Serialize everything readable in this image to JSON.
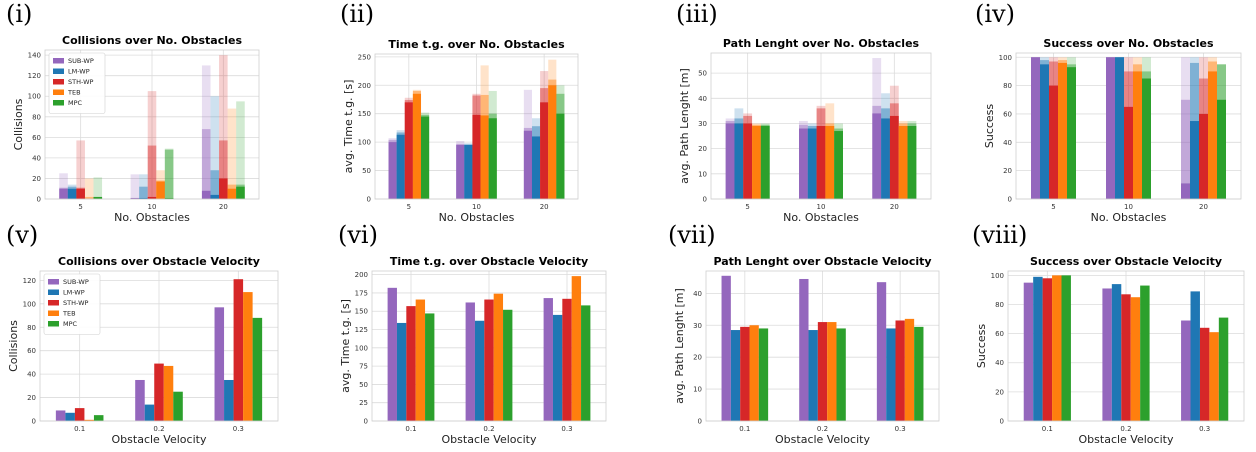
{
  "colors": {
    "SUB-WP": "#9467bd",
    "LM-WP": "#1f77b4",
    "STH-WP": "#d62728",
    "TEB": "#ff7f0e",
    "MPC": "#2ca02c",
    "grid": "#dcdcdc",
    "frame": "#cfcfcf"
  },
  "chart_data": [
    {
      "panel_label": "(i)",
      "type": "bar",
      "title": "Collisions over No. Obstacles",
      "xlabel": "No. Obstacles",
      "ylabel": "Collisions",
      "categories": [
        "5",
        "10",
        "20"
      ],
      "ylim": [
        0,
        145
      ],
      "yticks": [
        0,
        20,
        40,
        60,
        80,
        100,
        120,
        140
      ],
      "legend": "top-left",
      "grid": true,
      "series": [
        {
          "name": "SUB-WP",
          "values": [
            10,
            1,
            8
          ],
          "faded_values": [
            [
              11,
              25
            ],
            [
              1,
              24
            ],
            [
              68,
              130
            ]
          ]
        },
        {
          "name": "LM-WP",
          "values": [
            10,
            1,
            4
          ],
          "faded_values": [
            [
              12,
              14
            ],
            [
              12,
              24
            ],
            [
              28,
              100
            ]
          ]
        },
        {
          "name": "STH-WP",
          "values": [
            10,
            2,
            20
          ],
          "faded_values": [
            [
              11,
              57
            ],
            [
              52,
              105
            ],
            [
              57,
              140
            ]
          ]
        },
        {
          "name": "TEB",
          "values": [
            0,
            17,
            10
          ],
          "faded_values": [
            [
              2,
              20
            ],
            [
              18,
              28
            ],
            [
              14,
              88
            ]
          ]
        },
        {
          "name": "MPC",
          "values": [
            2,
            1,
            12
          ],
          "faded_values": [
            [
              2,
              21
            ],
            [
              48,
              49
            ],
            [
              14,
              95
            ]
          ]
        }
      ]
    },
    {
      "panel_label": "(ii)",
      "type": "bar",
      "title": "Time t.g. over No. Obstacles",
      "xlabel": "No. Obstacles",
      "ylabel": "avg. Time t.g. [s]",
      "categories": [
        "5",
        "10",
        "20"
      ],
      "ylim": [
        0,
        255
      ],
      "yticks": [
        0,
        50,
        100,
        150,
        200,
        250
      ],
      "legend": "none",
      "grid": true,
      "series": [
        {
          "name": "SUB-WP",
          "values": [
            100,
            95,
            120
          ],
          "faded_values": [
            [
              104,
              107
            ],
            [
              97,
              102
            ],
            [
              125,
              192
            ]
          ]
        },
        {
          "name": "LM-WP",
          "values": [
            113,
            95,
            110
          ],
          "faded_values": [
            [
              117,
              121
            ],
            [
              96,
              98
            ],
            [
              128,
              142
            ]
          ]
        },
        {
          "name": "STH-WP",
          "values": [
            170,
            148,
            170
          ],
          "faded_values": [
            [
              174,
              178
            ],
            [
              182,
              185
            ],
            [
              195,
              225
            ]
          ]
        },
        {
          "name": "TEB",
          "values": [
            185,
            147,
            200
          ],
          "faded_values": [
            [
              190,
              192
            ],
            [
              183,
              235
            ],
            [
              210,
              245
            ]
          ]
        },
        {
          "name": "MPC",
          "values": [
            145,
            142,
            150
          ],
          "faded_values": [
            [
              148,
              152
            ],
            [
              150,
              190
            ],
            [
              185,
              200
            ]
          ]
        }
      ]
    },
    {
      "panel_label": "(iii)",
      "type": "bar",
      "title": "Path Lenght over No. Obstacles",
      "xlabel": "No. Obstacles",
      "ylabel": "avg. Path Lenght [m]",
      "categories": [
        "5",
        "10",
        "20"
      ],
      "ylim": [
        0,
        58
      ],
      "yticks": [
        0,
        10,
        20,
        30,
        40,
        50
      ],
      "legend": "none",
      "grid": true,
      "series": [
        {
          "name": "SUB-WP",
          "values": [
            30,
            28,
            34
          ],
          "faded_values": [
            [
              31,
              32
            ],
            [
              29.5,
              31
            ],
            [
              37,
              56
            ]
          ]
        },
        {
          "name": "LM-WP",
          "values": [
            30,
            28,
            32
          ],
          "faded_values": [
            [
              32,
              36
            ],
            [
              29,
              30
            ],
            [
              36,
              42
            ]
          ]
        },
        {
          "name": "STH-WP",
          "values": [
            30,
            29,
            33
          ],
          "faded_values": [
            [
              33,
              34
            ],
            [
              36,
              37
            ],
            [
              38,
              45
            ]
          ]
        },
        {
          "name": "TEB",
          "values": [
            29,
            29,
            29
          ],
          "faded_values": [
            [
              29.5,
              30
            ],
            [
              30,
              38
            ],
            [
              30,
              31
            ]
          ]
        },
        {
          "name": "MPC",
          "values": [
            29,
            27,
            29
          ],
          "faded_values": [
            [
              29.5,
              30
            ],
            [
              28,
              30
            ],
            [
              30,
              31
            ]
          ]
        }
      ]
    },
    {
      "panel_label": "(iv)",
      "type": "bar",
      "title": "Success over No. Obstacles",
      "xlabel": "No. Obstacles",
      "ylabel": "Success",
      "categories": [
        "5",
        "10",
        "20"
      ],
      "ylim": [
        0,
        103
      ],
      "yticks": [
        0,
        20,
        40,
        60,
        80,
        100
      ],
      "legend": "none",
      "grid": true,
      "series": [
        {
          "name": "SUB-WP",
          "values": [
            100,
            100,
            11
          ],
          "faded_values": [
            [
              100,
              100
            ],
            [
              100,
              100
            ],
            [
              70,
              100
            ]
          ]
        },
        {
          "name": "LM-WP",
          "values": [
            95,
            100,
            55
          ],
          "faded_values": [
            [
              98,
              100
            ],
            [
              100,
              100
            ],
            [
              96,
              100
            ]
          ]
        },
        {
          "name": "STH-WP",
          "values": [
            80,
            65,
            60
          ],
          "faded_values": [
            [
              97,
              100
            ],
            [
              90,
              100
            ],
            [
              85,
              100
            ]
          ]
        },
        {
          "name": "TEB",
          "values": [
            96,
            90,
            90
          ],
          "faded_values": [
            [
              98,
              100
            ],
            [
              95,
              100
            ],
            [
              97,
              100
            ]
          ]
        },
        {
          "name": "MPC",
          "values": [
            93,
            85,
            70
          ],
          "faded_values": [
            [
              95,
              100
            ],
            [
              90,
              100
            ],
            [
              95,
              95
            ]
          ]
        }
      ]
    },
    {
      "panel_label": "(v)",
      "type": "bar",
      "title": "Collisions over Obstacle Velocity",
      "xlabel": "Obstacle Velocity",
      "ylabel": "Collisions",
      "categories": [
        "0.1",
        "0.2",
        "0.3"
      ],
      "ylim": [
        0,
        128
      ],
      "yticks": [
        0,
        20,
        40,
        60,
        80,
        100,
        120
      ],
      "legend": "top-left",
      "grid": true,
      "series": [
        {
          "name": "SUB-WP",
          "values": [
            9,
            35,
            97
          ]
        },
        {
          "name": "LM-WP",
          "values": [
            7,
            14,
            35
          ]
        },
        {
          "name": "STH-WP",
          "values": [
            11,
            49,
            121
          ]
        },
        {
          "name": "TEB",
          "values": [
            1,
            47,
            110
          ]
        },
        {
          "name": "MPC",
          "values": [
            5,
            25,
            88
          ]
        }
      ]
    },
    {
      "panel_label": "(vi)",
      "type": "bar",
      "title": "Time t.g. over Obstacle Velocity",
      "xlabel": "Obstacle Velocity",
      "ylabel": "avg. Time t.g. [s]",
      "categories": [
        "0.1",
        "0.2",
        "0.3"
      ],
      "ylim": [
        0,
        205
      ],
      "yticks": [
        0,
        25,
        50,
        75,
        100,
        125,
        150,
        175,
        200
      ],
      "legend": "none",
      "grid": true,
      "series": [
        {
          "name": "SUB-WP",
          "values": [
            182,
            162,
            168
          ]
        },
        {
          "name": "LM-WP",
          "values": [
            134,
            137,
            145
          ]
        },
        {
          "name": "STH-WP",
          "values": [
            157,
            166,
            167
          ]
        },
        {
          "name": "TEB",
          "values": [
            166,
            174,
            198
          ]
        },
        {
          "name": "MPC",
          "values": [
            147,
            152,
            158
          ]
        }
      ]
    },
    {
      "panel_label": "(vii)",
      "type": "bar",
      "title": "Path Lenght over Obstacle Velocity",
      "xlabel": "Obstacle Velocity",
      "ylabel": "avg. Path Lenght [m]",
      "categories": [
        "0.1",
        "0.2",
        "0.3"
      ],
      "ylim": [
        0,
        47
      ],
      "yticks": [
        0,
        10,
        20,
        30,
        40
      ],
      "legend": "none",
      "grid": true,
      "series": [
        {
          "name": "SUB-WP",
          "values": [
            45.5,
            44.5,
            43.5
          ]
        },
        {
          "name": "LM-WP",
          "values": [
            28.5,
            28.5,
            29
          ]
        },
        {
          "name": "STH-WP",
          "values": [
            29.5,
            31,
            31.5
          ]
        },
        {
          "name": "TEB",
          "values": [
            30,
            31,
            32
          ]
        },
        {
          "name": "MPC",
          "values": [
            29,
            29,
            29.5
          ]
        }
      ]
    },
    {
      "panel_label": "(viii)",
      "type": "bar",
      "title": "Success over Obstacle Velocity",
      "xlabel": "Obstacle Velocity",
      "ylabel": "Success",
      "categories": [
        "0.1",
        "0.2",
        "0.3"
      ],
      "ylim": [
        0,
        103
      ],
      "yticks": [
        0,
        20,
        40,
        60,
        80,
        100
      ],
      "legend": "none",
      "grid": true,
      "series": [
        {
          "name": "SUB-WP",
          "values": [
            95,
            91,
            69
          ]
        },
        {
          "name": "LM-WP",
          "values": [
            99,
            94,
            89
          ]
        },
        {
          "name": "STH-WP",
          "values": [
            98,
            87,
            64
          ]
        },
        {
          "name": "TEB",
          "values": [
            100,
            85,
            61
          ]
        },
        {
          "name": "MPC",
          "values": [
            100,
            93,
            71
          ]
        }
      ]
    }
  ]
}
